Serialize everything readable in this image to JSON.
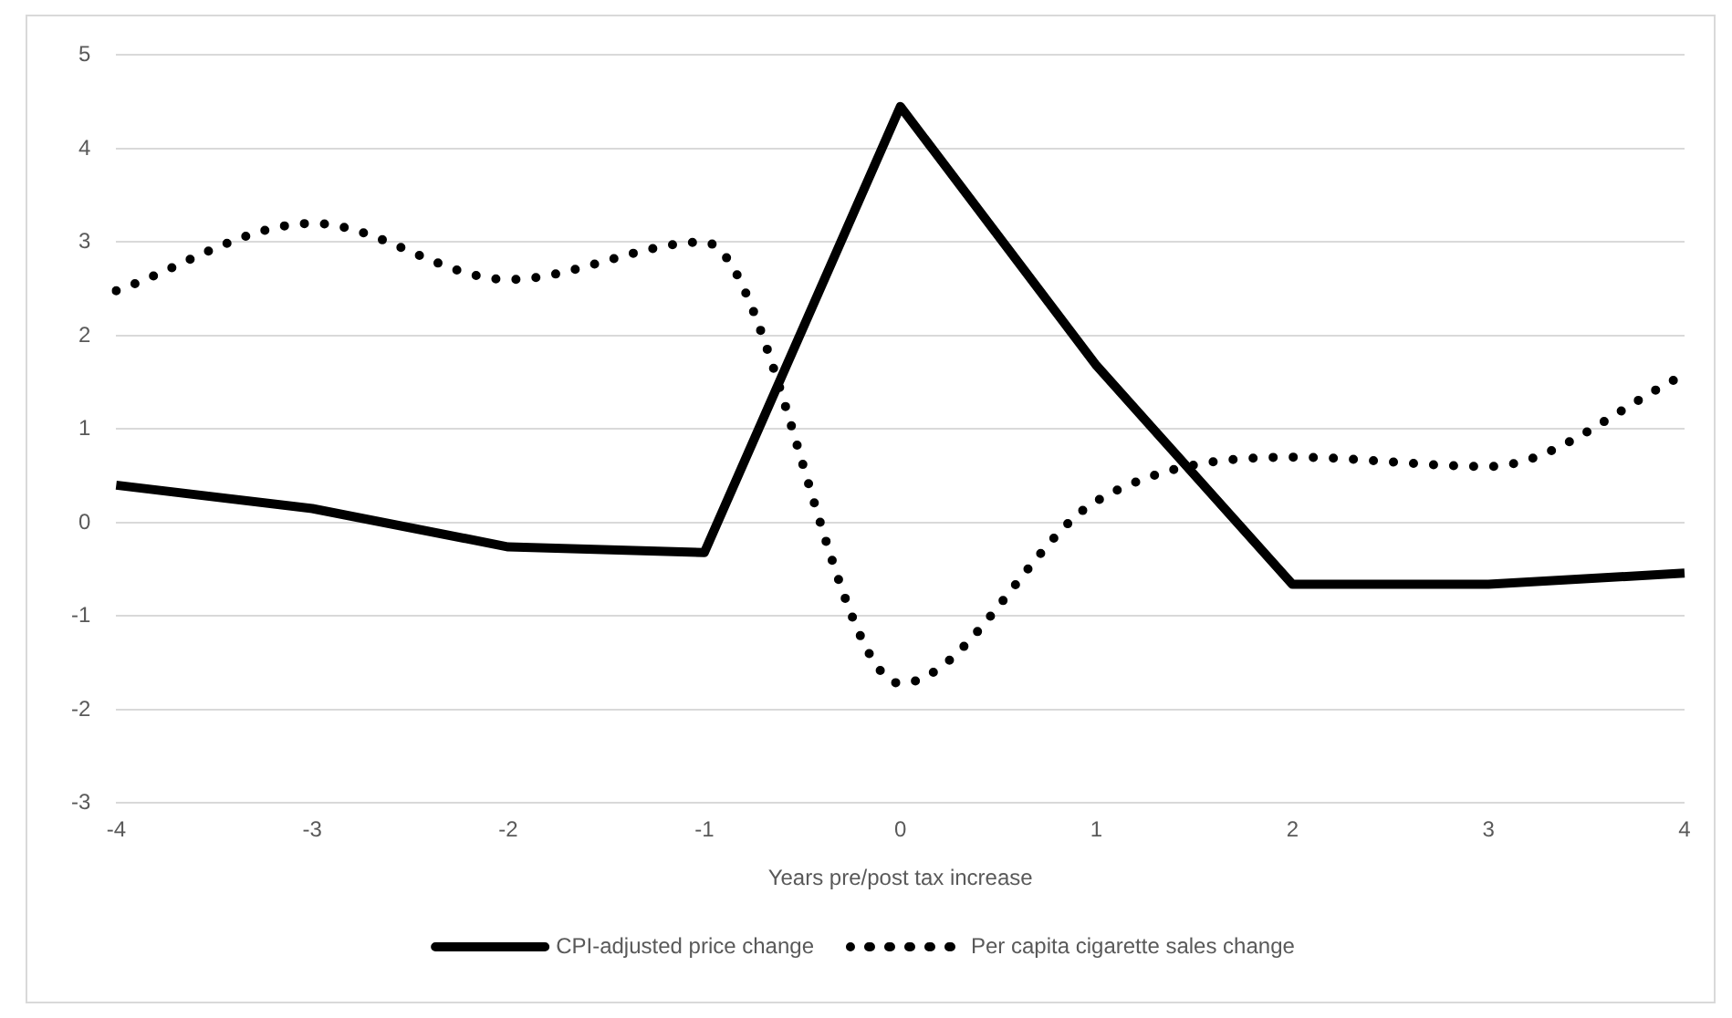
{
  "chart_data": {
    "type": "line",
    "xlabel": "Years pre/post tax increase",
    "categories": [
      "-4",
      "-3",
      "-2",
      "-1",
      "0",
      "1",
      "2",
      "3",
      "4"
    ],
    "series": [
      {
        "name": "CPI-adjusted price change",
        "color": "#000000",
        "line_style": "solid",
        "values": [
          0.4,
          0.15,
          -0.26,
          -0.32,
          4.45,
          1.68,
          -0.66,
          -0.66,
          -0.54
        ]
      },
      {
        "name": "Per capita cigarette sales change",
        "color": "#000000",
        "line_style": "dotted",
        "values": [
          2.48,
          3.2,
          2.6,
          3.0,
          -1.72,
          0.23,
          0.7,
          0.6,
          1.58
        ]
      }
    ],
    "ylim": [
      -3,
      5
    ],
    "yticks": [
      -3,
      -2,
      -1,
      0,
      1,
      2,
      3,
      4,
      5
    ],
    "grid": "y",
    "legend": "bottom",
    "marker": "none"
  }
}
